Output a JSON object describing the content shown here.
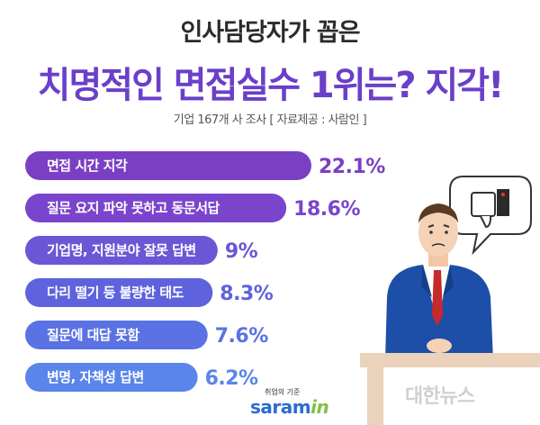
{
  "header": {
    "title_line1": "인사담당자가 꼽은",
    "title_line2": "치명적인 면접실수 1위는? 지각!",
    "subtitle": "기업 167개 사 조사 [ 자료제공 : 사람인 ]"
  },
  "chart_data": {
    "type": "bar",
    "orientation": "horizontal",
    "categories": [
      "면접 시간 지각",
      "질문 요지 파악 못하고 동문서답",
      "기업명, 지원분야 잘못 답변",
      "다리 떨기 등 불량한 태도",
      "질문에 대답 못함",
      "변명, 자책성 답변"
    ],
    "values": [
      22.1,
      18.6,
      9,
      8.3,
      7.6,
      6.2
    ],
    "value_labels": [
      "22.1%",
      "18.6%",
      "9%",
      "8.3%",
      "7.6%",
      "6.2%"
    ],
    "colors": [
      "#7b3fc4",
      "#7a45cc",
      "#6b56d6",
      "#5f62dd",
      "#5a72e3",
      "#5a85ea"
    ]
  },
  "logo": {
    "small_text": "취업의 기준",
    "main_text": "saram",
    "main_suffix": "in"
  },
  "watermark": "대한뉴스"
}
